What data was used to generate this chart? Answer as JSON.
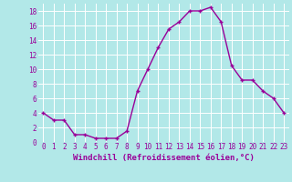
{
  "x": [
    0,
    1,
    2,
    3,
    4,
    5,
    6,
    7,
    8,
    9,
    10,
    11,
    12,
    13,
    14,
    15,
    16,
    17,
    18,
    19,
    20,
    21,
    22,
    23
  ],
  "y": [
    4,
    3,
    3,
    1,
    1,
    0.5,
    0.5,
    0.5,
    1.5,
    7,
    10,
    13,
    15.5,
    16.5,
    18,
    18,
    18.5,
    16.5,
    10.5,
    8.5,
    8.5,
    7,
    6,
    4
  ],
  "line_color": "#990099",
  "marker": "+",
  "marker_size": 3.5,
  "linewidth": 1.0,
  "bg_color": "#b2e8e8",
  "grid_color": "#ffffff",
  "xlabel": "Windchill (Refroidissement éolien,°C)",
  "xlabel_fontsize": 6.5,
  "xlim_min": -0.5,
  "xlim_max": 23.5,
  "ylim_min": 0,
  "ylim_max": 19,
  "xtick_labels": [
    "0",
    "1",
    "2",
    "3",
    "4",
    "5",
    "6",
    "7",
    "8",
    "9",
    "10",
    "11",
    "12",
    "13",
    "14",
    "15",
    "16",
    "17",
    "18",
    "19",
    "20",
    "21",
    "22",
    "23"
  ],
  "ytick_values": [
    0,
    2,
    4,
    6,
    8,
    10,
    12,
    14,
    16,
    18
  ],
  "tick_fontsize": 5.5
}
